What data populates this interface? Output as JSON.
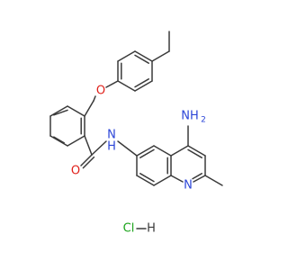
{
  "atoms": {
    "ether_oxygen": "O",
    "carbonyl_oxygen": "O",
    "amide_nitrogen": "N",
    "amide_hydrogen": "H",
    "amine": {
      "label": "NH",
      "subscript": "2"
    },
    "ring_nitrogen": "N"
  },
  "salt": {
    "chlorine": "Cl",
    "hydrogen": "H"
  }
}
